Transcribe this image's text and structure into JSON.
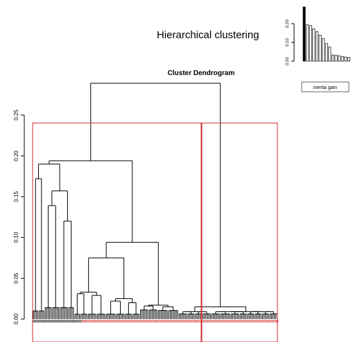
{
  "page": {
    "title": "Hierarchical clustering"
  },
  "chart_data": [
    {
      "type": "dendrogram",
      "title": "Cluster Dendrogram",
      "ylim": [
        0,
        0.3
      ],
      "yticks": [
        0.0,
        0.05,
        0.1,
        0.15,
        0.2,
        0.25
      ],
      "ytick_labels": [
        "0.00",
        "0.05",
        "0.10",
        "0.15",
        "0.20",
        "0.25"
      ],
      "merge_heights": [
        0.289,
        0.194,
        0.19,
        0.172,
        0.157,
        0.139,
        0.12,
        0.094,
        0.075,
        0.033,
        0.031,
        0.029,
        0.025,
        0.022,
        0.02,
        0.017,
        0.016,
        0.015
      ],
      "clusters": 2,
      "cluster_cut_height": 0.24,
      "cluster_box_color": "#d62728"
    },
    {
      "type": "bar",
      "xlabel": "inertia gain",
      "yticks": [
        0.0,
        0.1,
        0.2
      ],
      "ytick_labels": [
        "0.00",
        "0.10",
        "0.20"
      ],
      "ylim": [
        0,
        0.3
      ],
      "values": [
        0.289,
        0.194,
        0.19,
        0.172,
        0.157,
        0.139,
        0.12,
        0.094,
        0.075,
        0.033,
        0.031,
        0.029,
        0.025,
        0.022,
        0.02
      ]
    }
  ]
}
